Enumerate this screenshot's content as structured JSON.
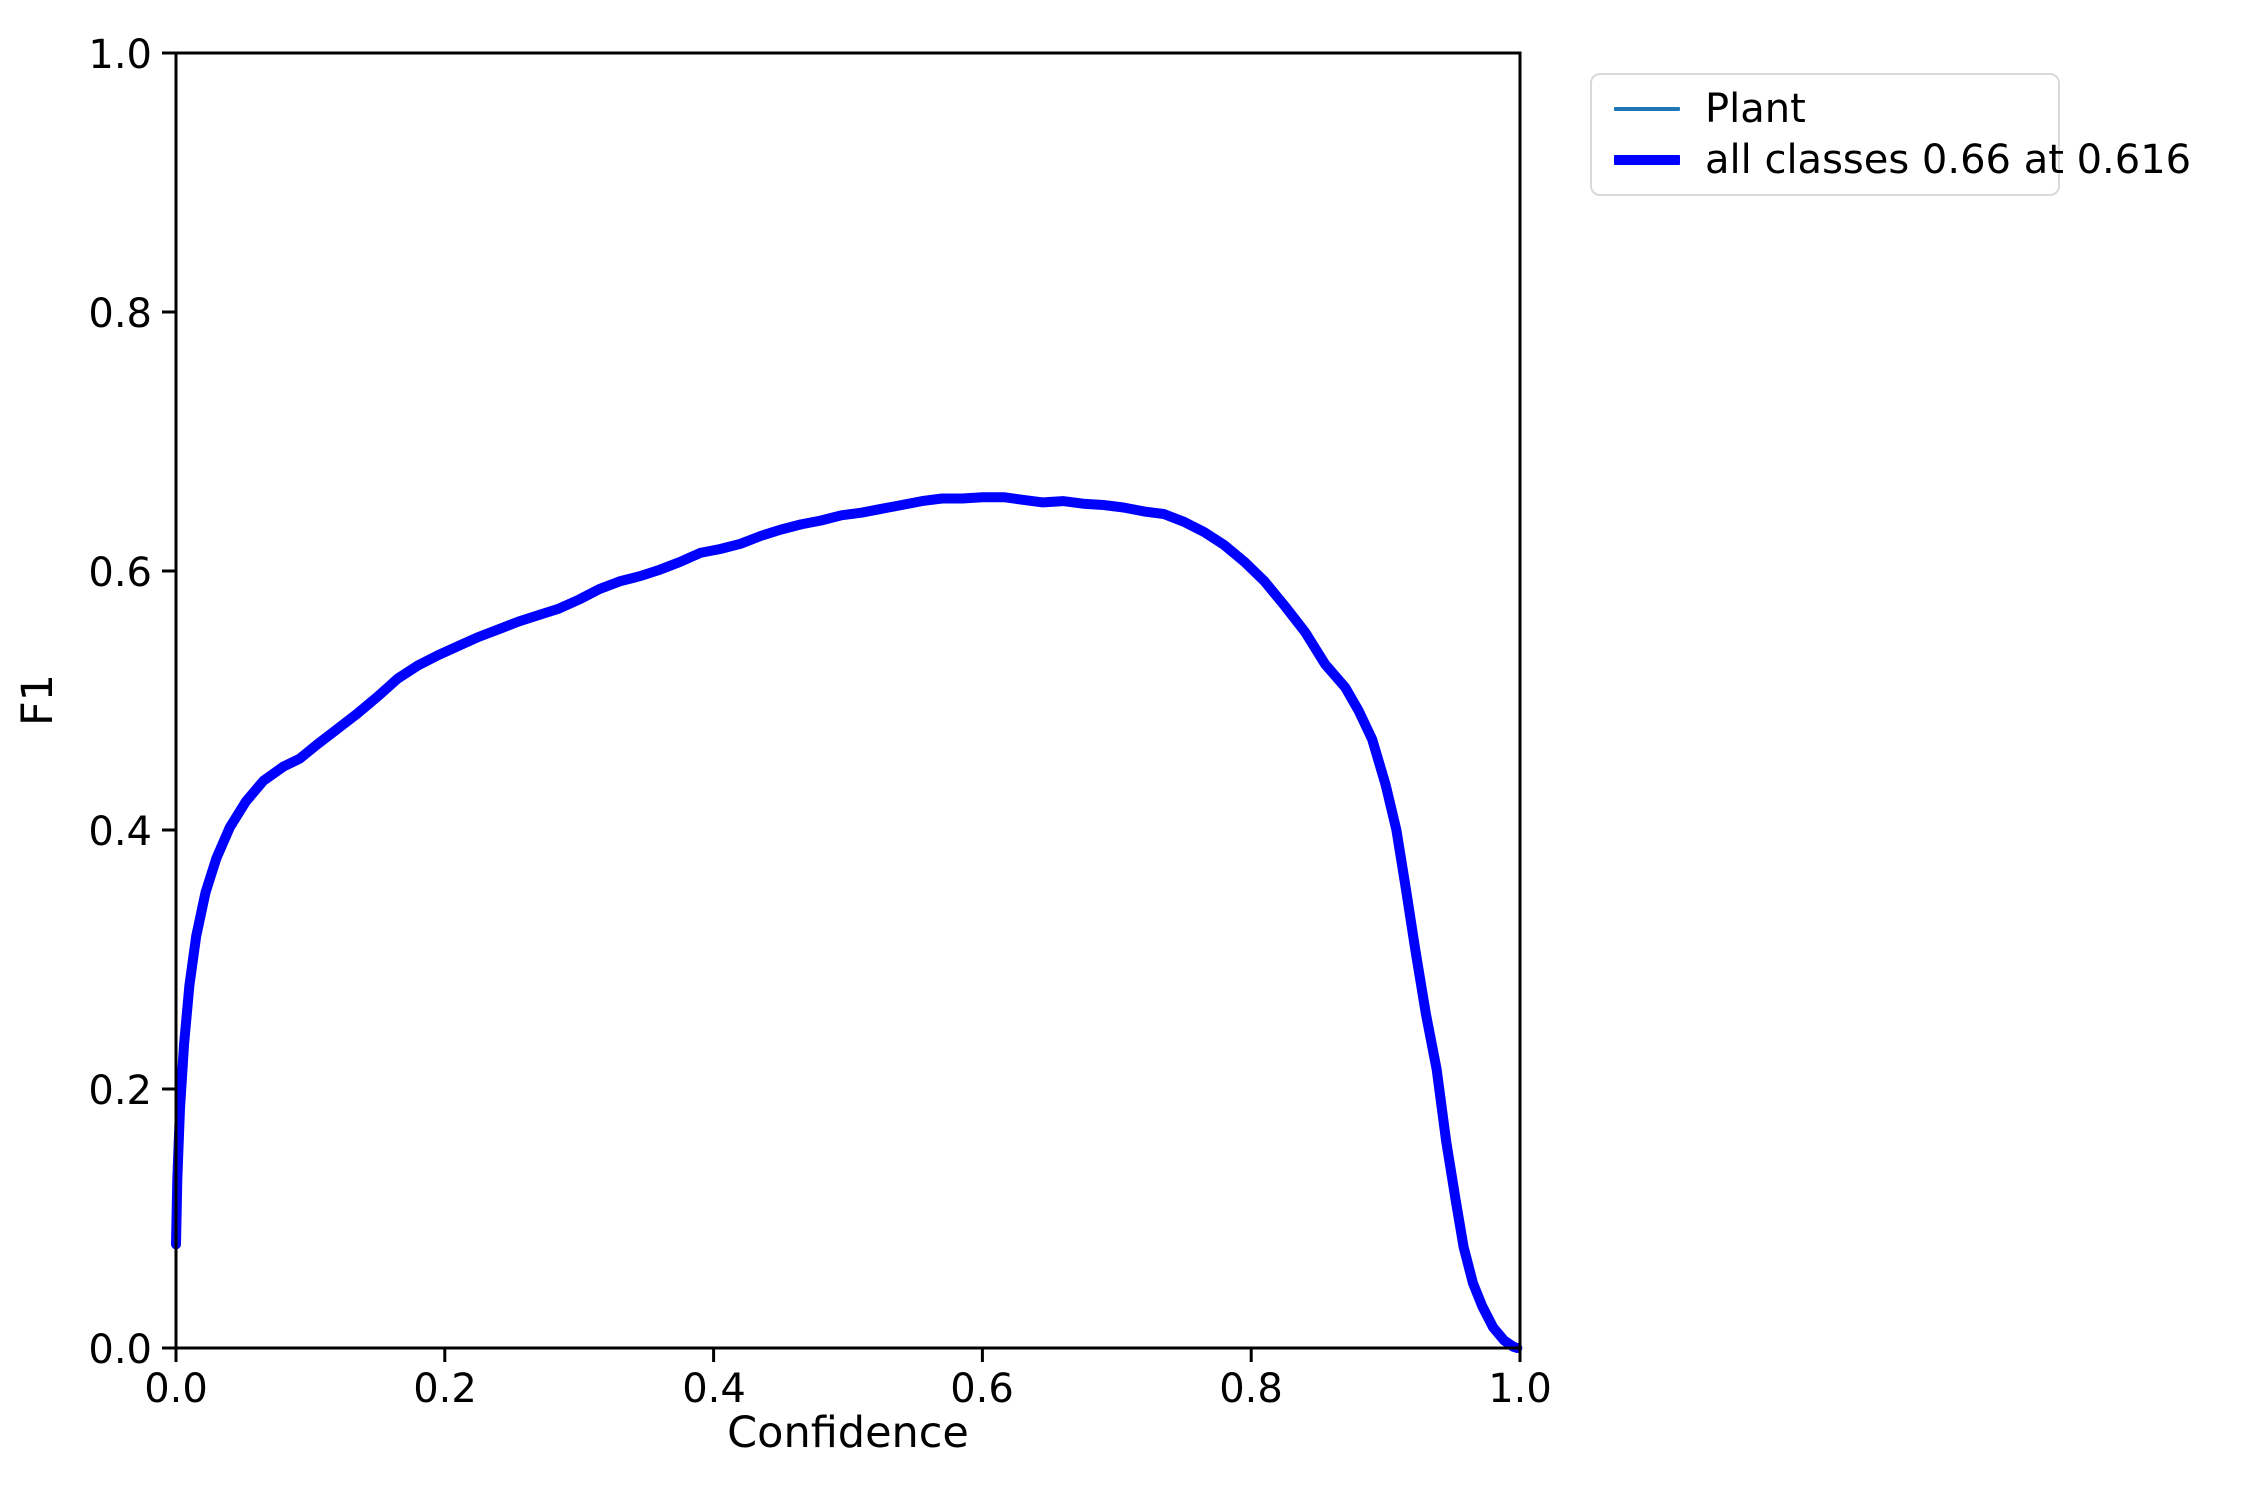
{
  "page": {
    "background": "#ffffff"
  },
  "chart_data": {
    "type": "line",
    "title": "",
    "xlabel": "Confidence",
    "ylabel": "F1",
    "xlim": [
      0.0,
      1.0
    ],
    "ylim": [
      0.0,
      1.0
    ],
    "x_tick_labels": [
      "0.0",
      "0.2",
      "0.4",
      "0.6",
      "0.8",
      "1.0"
    ],
    "y_tick_labels": [
      "0.0",
      "0.2",
      "0.4",
      "0.6",
      "0.8",
      "1.0"
    ],
    "grid": false,
    "legend": {
      "position": "upper right outside plot",
      "entries": [
        {
          "label": "Plant",
          "color": "#1f77b4",
          "line_width": 3.5
        },
        {
          "label": "all classes 0.66 at 0.616",
          "color": "#0000ff",
          "line_width": 10
        }
      ]
    },
    "best_point": {
      "f1": "0.66",
      "confidence": "0.616"
    },
    "x": [
      0.0,
      0.001,
      0.003,
      0.006,
      0.01,
      0.015,
      0.022,
      0.03,
      0.04,
      0.052,
      0.065,
      0.08,
      0.092,
      0.105,
      0.12,
      0.135,
      0.15,
      0.165,
      0.18,
      0.195,
      0.21,
      0.225,
      0.24,
      0.255,
      0.27,
      0.285,
      0.3,
      0.315,
      0.33,
      0.345,
      0.36,
      0.375,
      0.39,
      0.405,
      0.42,
      0.435,
      0.45,
      0.465,
      0.48,
      0.495,
      0.51,
      0.525,
      0.54,
      0.555,
      0.57,
      0.585,
      0.6,
      0.616,
      0.63,
      0.645,
      0.66,
      0.675,
      0.69,
      0.705,
      0.72,
      0.735,
      0.75,
      0.765,
      0.78,
      0.795,
      0.81,
      0.825,
      0.84,
      0.855,
      0.87,
      0.88,
      0.89,
      0.9,
      0.908,
      0.915,
      0.922,
      0.93,
      0.938,
      0.945,
      0.952,
      0.958,
      0.965,
      0.972,
      0.98,
      0.988,
      0.995,
      0.998
    ],
    "series": [
      {
        "name": "Plant",
        "color": "#1f77b4",
        "line_width": 3.5,
        "f1": [
          0.08,
          0.13,
          0.185,
          0.235,
          0.28,
          0.318,
          0.352,
          0.378,
          0.402,
          0.422,
          0.438,
          0.449,
          0.455,
          0.466,
          0.478,
          0.49,
          0.503,
          0.517,
          0.527,
          0.535,
          0.542,
          0.549,
          0.555,
          0.561,
          0.566,
          0.571,
          0.578,
          0.586,
          0.592,
          0.596,
          0.601,
          0.607,
          0.614,
          0.617,
          0.621,
          0.627,
          0.632,
          0.636,
          0.639,
          0.643,
          0.645,
          0.648,
          0.651,
          0.654,
          0.656,
          0.656,
          0.657,
          0.657,
          0.655,
          0.653,
          0.654,
          0.652,
          0.651,
          0.649,
          0.646,
          0.644,
          0.638,
          0.63,
          0.62,
          0.607,
          0.592,
          0.573,
          0.553,
          0.528,
          0.51,
          0.492,
          0.47,
          0.435,
          0.4,
          0.355,
          0.308,
          0.258,
          0.215,
          0.16,
          0.115,
          0.078,
          0.05,
          0.032,
          0.016,
          0.006,
          0.001,
          0.0
        ]
      },
      {
        "name": "all classes 0.66 at 0.616",
        "color": "#0000ff",
        "line_width": 10,
        "f1": [
          0.08,
          0.13,
          0.185,
          0.235,
          0.28,
          0.318,
          0.352,
          0.378,
          0.402,
          0.422,
          0.438,
          0.449,
          0.455,
          0.466,
          0.478,
          0.49,
          0.503,
          0.517,
          0.527,
          0.535,
          0.542,
          0.549,
          0.555,
          0.561,
          0.566,
          0.571,
          0.578,
          0.586,
          0.592,
          0.596,
          0.601,
          0.607,
          0.614,
          0.617,
          0.621,
          0.627,
          0.632,
          0.636,
          0.639,
          0.643,
          0.645,
          0.648,
          0.651,
          0.654,
          0.656,
          0.656,
          0.657,
          0.657,
          0.655,
          0.653,
          0.654,
          0.652,
          0.651,
          0.649,
          0.646,
          0.644,
          0.638,
          0.63,
          0.62,
          0.607,
          0.592,
          0.573,
          0.553,
          0.528,
          0.51,
          0.492,
          0.47,
          0.435,
          0.4,
          0.355,
          0.308,
          0.258,
          0.215,
          0.16,
          0.115,
          0.078,
          0.05,
          0.032,
          0.016,
          0.006,
          0.001,
          0.0
        ]
      }
    ]
  }
}
